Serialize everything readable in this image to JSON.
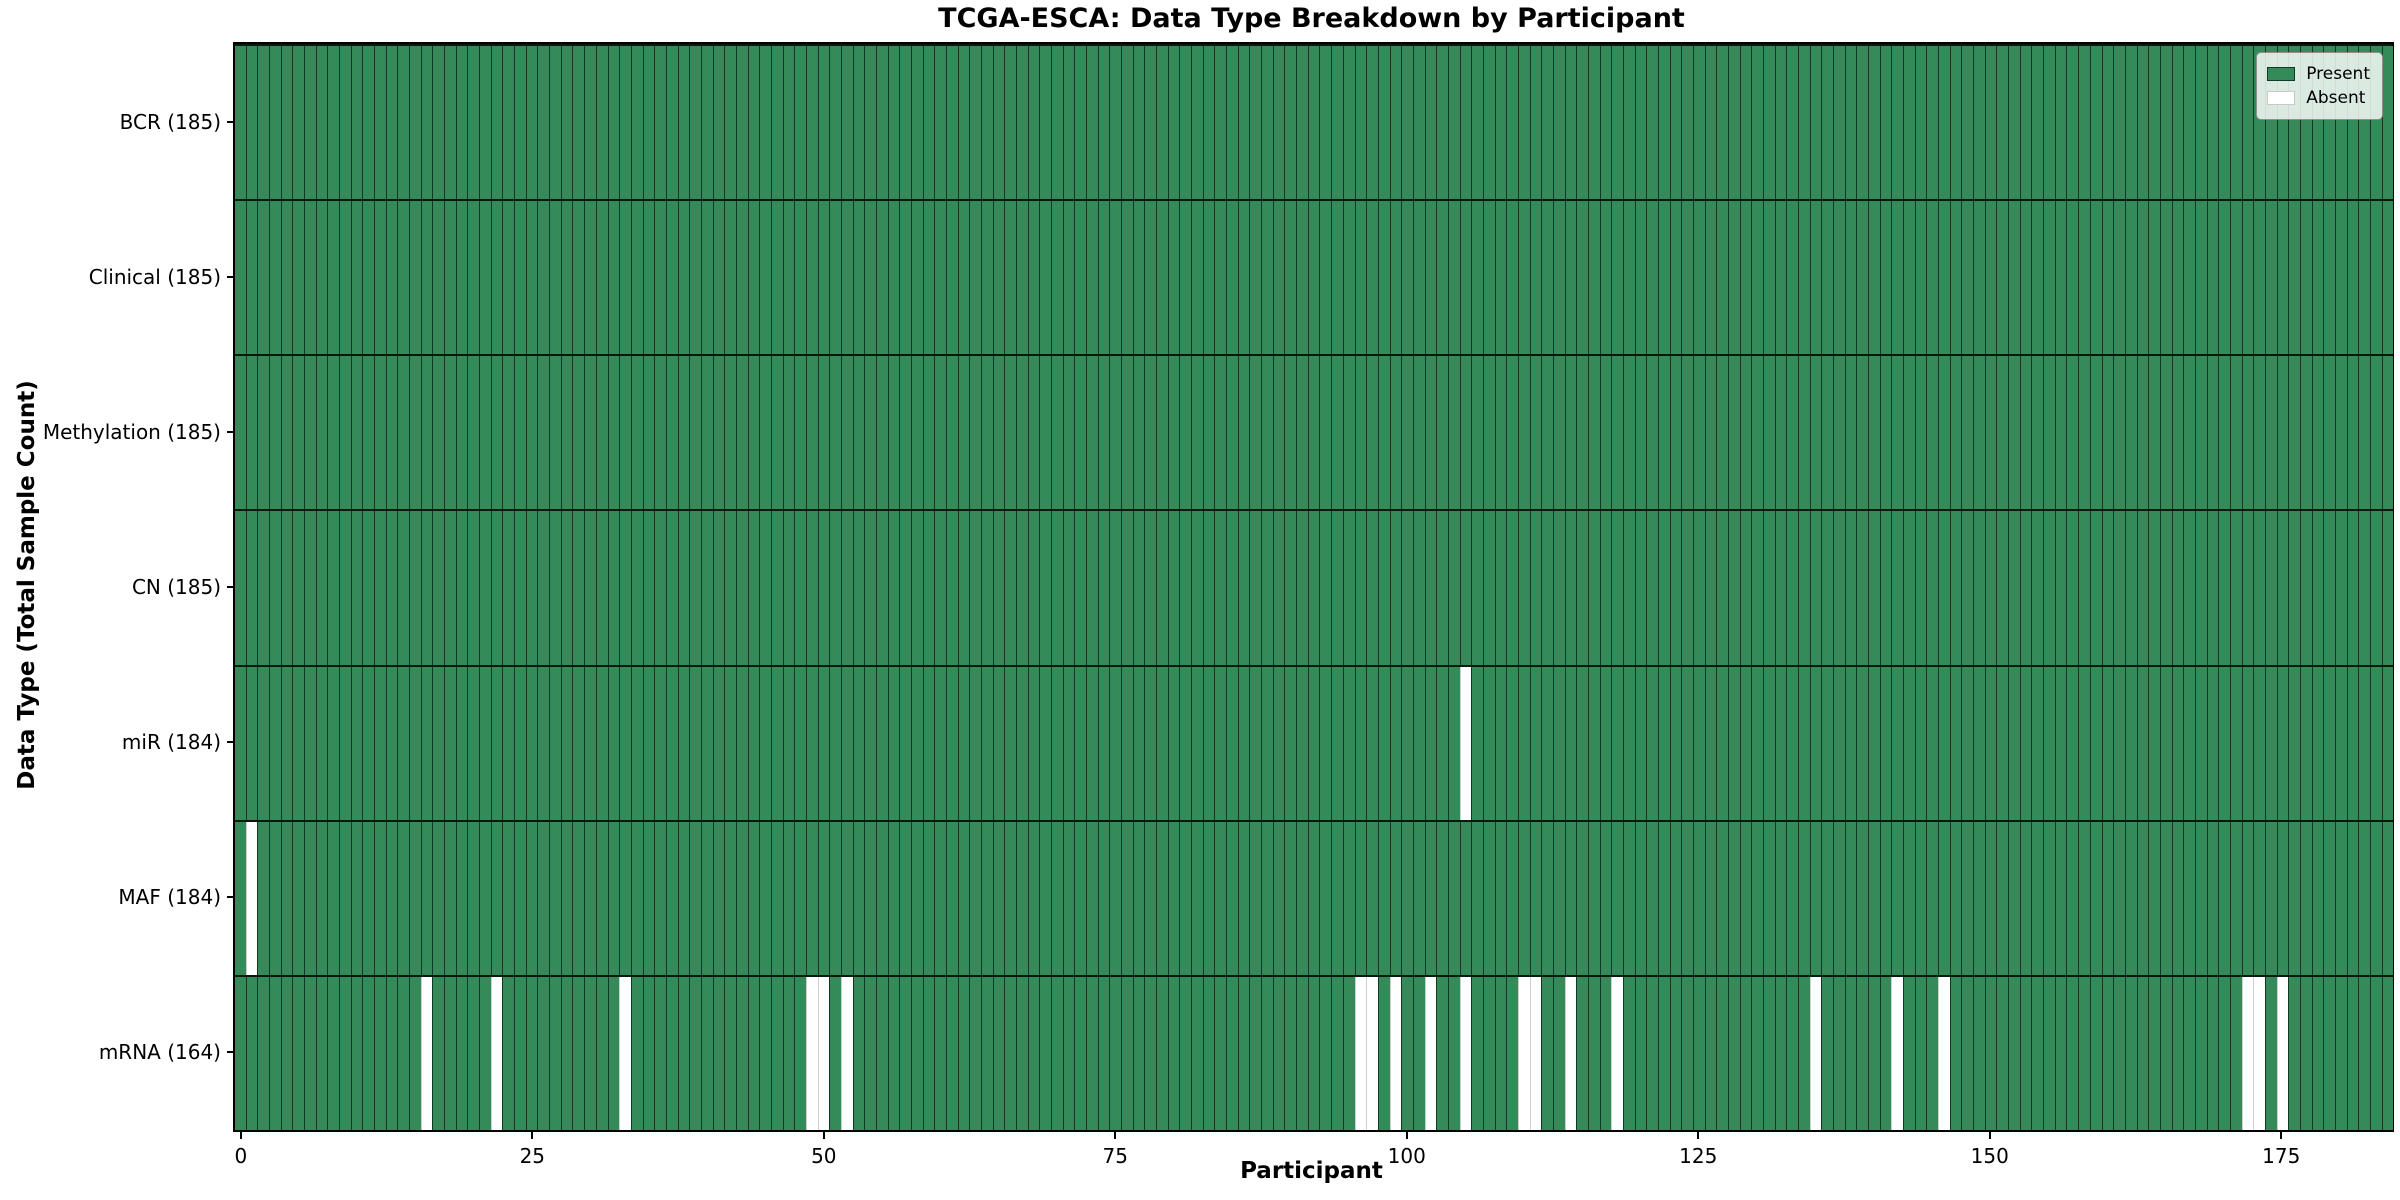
{
  "title": "TCGA-ESCA: Data Type Breakdown by Participant",
  "x_axis": {
    "label": "Participant",
    "ticks": [
      0,
      25,
      50,
      75,
      100,
      125,
      150,
      175
    ]
  },
  "y_axis": {
    "label": "Data Type (Total Sample Count)"
  },
  "legend": {
    "items": [
      {
        "label": "Present",
        "color": "#348a58"
      },
      {
        "label": "Absent",
        "color": "#ffffff"
      }
    ]
  },
  "colors": {
    "present": "#348a58",
    "absent": "#ffffff",
    "cell_edge": "#0a2a1a",
    "row_edge": "#07190f",
    "spine": "#000000"
  },
  "chart_data": {
    "type": "heatmap",
    "title": "TCGA-ESCA: Data Type Breakdown by Participant",
    "xlabel": "Participant",
    "ylabel": "Data Type (Total Sample Count)",
    "n_participants": 185,
    "x_ticks": [
      0,
      25,
      50,
      75,
      100,
      125,
      150,
      175
    ],
    "legend_position": "upper right",
    "grid": "cell-edges",
    "rows": [
      {
        "label": "BCR (185)",
        "data_type": "BCR",
        "present_count": 185,
        "absent_participants": []
      },
      {
        "label": "Clinical (185)",
        "data_type": "Clinical",
        "present_count": 185,
        "absent_participants": []
      },
      {
        "label": "Methylation (185)",
        "data_type": "Methylation",
        "present_count": 185,
        "absent_participants": []
      },
      {
        "label": "CN (185)",
        "data_type": "CN",
        "present_count": 185,
        "absent_participants": []
      },
      {
        "label": "miR (184)",
        "data_type": "miR",
        "present_count": 184,
        "absent_participants": [
          105
        ]
      },
      {
        "label": "MAF (184)",
        "data_type": "MAF",
        "present_count": 184,
        "absent_participants": [
          1
        ]
      },
      {
        "label": "mRNA (164)",
        "data_type": "mRNA",
        "present_count": 164,
        "absent_participants": [
          16,
          22,
          33,
          49,
          50,
          52,
          96,
          97,
          99,
          102,
          105,
          110,
          111,
          114,
          118,
          135,
          142,
          146,
          172,
          173,
          175
        ]
      }
    ]
  }
}
